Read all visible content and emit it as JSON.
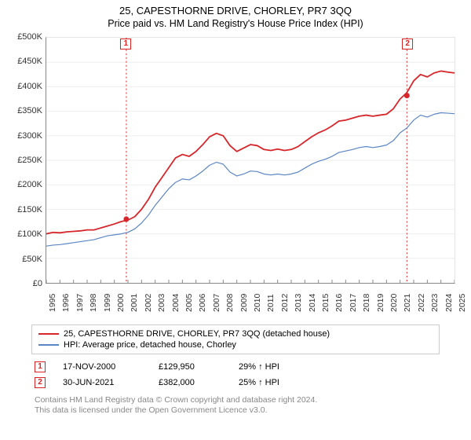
{
  "title": "25, CAPESTHORNE DRIVE, CHORLEY, PR7 3QQ",
  "subtitle": "Price paid vs. HM Land Registry's House Price Index (HPI)",
  "chart": {
    "type": "line",
    "background_color": "#ffffff",
    "grid_color": "#eeeeee",
    "axis_color": "#888888",
    "vline_color": "#d22",
    "vline_dash": "2,3",
    "x": {
      "min": 1995,
      "max": 2025,
      "tick_step": 1
    },
    "y": {
      "min": 0,
      "max": 500000,
      "tick_step": 50000,
      "prefix": "£",
      "suffix": "K",
      "divisor": 1000
    },
    "series": [
      {
        "key": "property",
        "label": "25, CAPESTHORNE DRIVE, CHORLEY, PR7 3QQ (detached house)",
        "color": "#d6262a",
        "width": 1.8,
        "points": [
          [
            1995,
            100000
          ],
          [
            1995.5,
            103000
          ],
          [
            1996,
            102000
          ],
          [
            1996.5,
            104000
          ],
          [
            1997,
            105000
          ],
          [
            1997.5,
            106000
          ],
          [
            1998,
            108000
          ],
          [
            1998.5,
            108000
          ],
          [
            1999,
            112000
          ],
          [
            1999.5,
            116000
          ],
          [
            2000,
            120000
          ],
          [
            2000.5,
            125000
          ],
          [
            2001,
            128000
          ],
          [
            2001.5,
            135000
          ],
          [
            2002,
            150000
          ],
          [
            2002.5,
            170000
          ],
          [
            2003,
            195000
          ],
          [
            2003.5,
            215000
          ],
          [
            2004,
            235000
          ],
          [
            2004.5,
            255000
          ],
          [
            2005,
            262000
          ],
          [
            2005.5,
            258000
          ],
          [
            2006,
            268000
          ],
          [
            2006.5,
            282000
          ],
          [
            2007,
            298000
          ],
          [
            2007.5,
            305000
          ],
          [
            2008,
            300000
          ],
          [
            2008.5,
            280000
          ],
          [
            2009,
            268000
          ],
          [
            2009.5,
            275000
          ],
          [
            2010,
            282000
          ],
          [
            2010.5,
            280000
          ],
          [
            2011,
            272000
          ],
          [
            2011.5,
            270000
          ],
          [
            2012,
            273000
          ],
          [
            2012.5,
            270000
          ],
          [
            2013,
            272000
          ],
          [
            2013.5,
            278000
          ],
          [
            2014,
            288000
          ],
          [
            2014.5,
            298000
          ],
          [
            2015,
            306000
          ],
          [
            2015.5,
            312000
          ],
          [
            2016,
            320000
          ],
          [
            2016.5,
            330000
          ],
          [
            2017,
            332000
          ],
          [
            2017.5,
            336000
          ],
          [
            2018,
            340000
          ],
          [
            2018.5,
            342000
          ],
          [
            2019,
            340000
          ],
          [
            2019.5,
            342000
          ],
          [
            2020,
            344000
          ],
          [
            2020.5,
            355000
          ],
          [
            2021,
            375000
          ],
          [
            2021.5,
            388000
          ],
          [
            2022,
            412000
          ],
          [
            2022.5,
            425000
          ],
          [
            2023,
            420000
          ],
          [
            2023.5,
            428000
          ],
          [
            2024,
            432000
          ],
          [
            2024.5,
            430000
          ],
          [
            2025,
            428000
          ]
        ]
      },
      {
        "key": "hpi",
        "label": "HPI: Average price, detached house, Chorley",
        "color": "#5b86c5",
        "width": 1.2,
        "points": [
          [
            1995,
            75000
          ],
          [
            1995.5,
            77000
          ],
          [
            1996,
            78000
          ],
          [
            1996.5,
            80000
          ],
          [
            1997,
            82000
          ],
          [
            1997.5,
            84000
          ],
          [
            1998,
            86000
          ],
          [
            1998.5,
            88000
          ],
          [
            1999,
            92000
          ],
          [
            1999.5,
            96000
          ],
          [
            2000,
            98000
          ],
          [
            2000.5,
            100000
          ],
          [
            2001,
            103000
          ],
          [
            2001.5,
            110000
          ],
          [
            2002,
            122000
          ],
          [
            2002.5,
            138000
          ],
          [
            2003,
            158000
          ],
          [
            2003.5,
            175000
          ],
          [
            2004,
            192000
          ],
          [
            2004.5,
            205000
          ],
          [
            2005,
            212000
          ],
          [
            2005.5,
            210000
          ],
          [
            2006,
            218000
          ],
          [
            2006.5,
            228000
          ],
          [
            2007,
            240000
          ],
          [
            2007.5,
            246000
          ],
          [
            2008,
            242000
          ],
          [
            2008.5,
            226000
          ],
          [
            2009,
            218000
          ],
          [
            2009.5,
            222000
          ],
          [
            2010,
            228000
          ],
          [
            2010.5,
            227000
          ],
          [
            2011,
            222000
          ],
          [
            2011.5,
            220000
          ],
          [
            2012,
            222000
          ],
          [
            2012.5,
            220000
          ],
          [
            2013,
            222000
          ],
          [
            2013.5,
            226000
          ],
          [
            2014,
            234000
          ],
          [
            2014.5,
            242000
          ],
          [
            2015,
            248000
          ],
          [
            2015.5,
            252000
          ],
          [
            2016,
            258000
          ],
          [
            2016.5,
            266000
          ],
          [
            2017,
            269000
          ],
          [
            2017.5,
            272000
          ],
          [
            2018,
            276000
          ],
          [
            2018.5,
            278000
          ],
          [
            2019,
            276000
          ],
          [
            2019.5,
            278000
          ],
          [
            2020,
            281000
          ],
          [
            2020.5,
            290000
          ],
          [
            2021,
            306000
          ],
          [
            2021.5,
            316000
          ],
          [
            2022,
            332000
          ],
          [
            2022.5,
            342000
          ],
          [
            2023,
            338000
          ],
          [
            2023.5,
            344000
          ],
          [
            2024,
            347000
          ],
          [
            2024.5,
            346000
          ],
          [
            2025,
            345000
          ]
        ]
      }
    ],
    "sale_markers": [
      {
        "label": "1",
        "x": 2000.88,
        "y": 129950
      },
      {
        "label": "2",
        "x": 2021.5,
        "y": 382000
      }
    ]
  },
  "legend": {
    "rows": [
      {
        "color": "#d6262a",
        "label": "25, CAPESTHORNE DRIVE, CHORLEY, PR7 3QQ (detached house)"
      },
      {
        "color": "#5b86c5",
        "label": "HPI: Average price, detached house, Chorley"
      }
    ]
  },
  "sales": [
    {
      "marker": "1",
      "date": "17-NOV-2000",
      "price": "£129,950",
      "pct": "29% ↑ HPI"
    },
    {
      "marker": "2",
      "date": "30-JUN-2021",
      "price": "£382,000",
      "pct": "25% ↑ HPI"
    }
  ],
  "footer_line1": "Contains HM Land Registry data © Crown copyright and database right 2024.",
  "footer_line2": "This data is licensed under the Open Government Licence v3.0."
}
